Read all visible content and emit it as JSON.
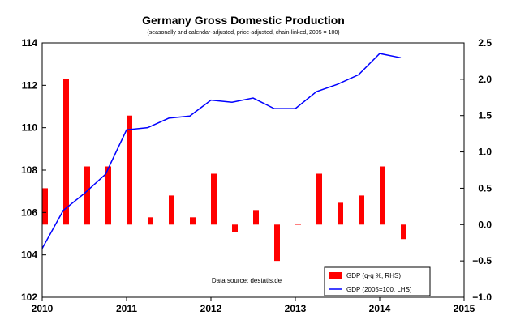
{
  "chart_data": {
    "type": "bar+line",
    "title": "Germany Gross Domestic Production",
    "subtitle": "(seasonally and calendar-adjusted, price-adjusted, chain-linked, 2005 = 100)",
    "source_note": "Data source: destatis.de",
    "x_axis": {
      "range": [
        2010,
        2015
      ],
      "ticks": [
        "2010",
        "2011",
        "2012",
        "2013",
        "2014",
        "2015"
      ]
    },
    "left_axis": {
      "range": [
        102,
        114
      ],
      "ticks": [
        "102",
        "104",
        "106",
        "108",
        "110",
        "112",
        "114"
      ]
    },
    "right_axis": {
      "range": [
        -1.0,
        2.5
      ],
      "ticks": [
        "−1.0",
        "−0.5",
        "0.0",
        "0.5",
        "1.0",
        "1.5",
        "2.0",
        "2.5"
      ]
    },
    "series": [
      {
        "name": "GDP (q-q %, RHS)",
        "kind": "bar",
        "axis": "right",
        "color": "#ff0000",
        "x": [
          2010.0,
          2010.25,
          2010.5,
          2010.75,
          2011.0,
          2011.25,
          2011.5,
          2011.75,
          2012.0,
          2012.25,
          2012.5,
          2012.75,
          2013.0,
          2013.25,
          2013.5,
          2013.75,
          2014.0,
          2014.25
        ],
        "values": [
          0.5,
          2.0,
          0.8,
          0.8,
          1.5,
          0.1,
          0.4,
          0.1,
          0.7,
          -0.1,
          0.2,
          -0.5,
          0.0,
          0.7,
          0.3,
          0.4,
          0.8,
          -0.2
        ]
      },
      {
        "name": "GDP (2005=100, LHS)",
        "kind": "line",
        "axis": "left",
        "color": "#0000ff",
        "x": [
          2010.0,
          2010.25,
          2010.5,
          2010.75,
          2011.0,
          2011.25,
          2011.5,
          2011.75,
          2012.0,
          2012.25,
          2012.5,
          2012.75,
          2013.0,
          2013.25,
          2013.5,
          2013.75,
          2014.0,
          2014.25
        ],
        "values": [
          104.3,
          106.1,
          106.9,
          107.8,
          109.9,
          110.0,
          110.45,
          110.55,
          111.3,
          111.2,
          111.4,
          110.9,
          110.9,
          111.7,
          112.05,
          112.5,
          113.5,
          113.3
        ]
      }
    ],
    "legend": {
      "placement": "bottom-right"
    }
  }
}
